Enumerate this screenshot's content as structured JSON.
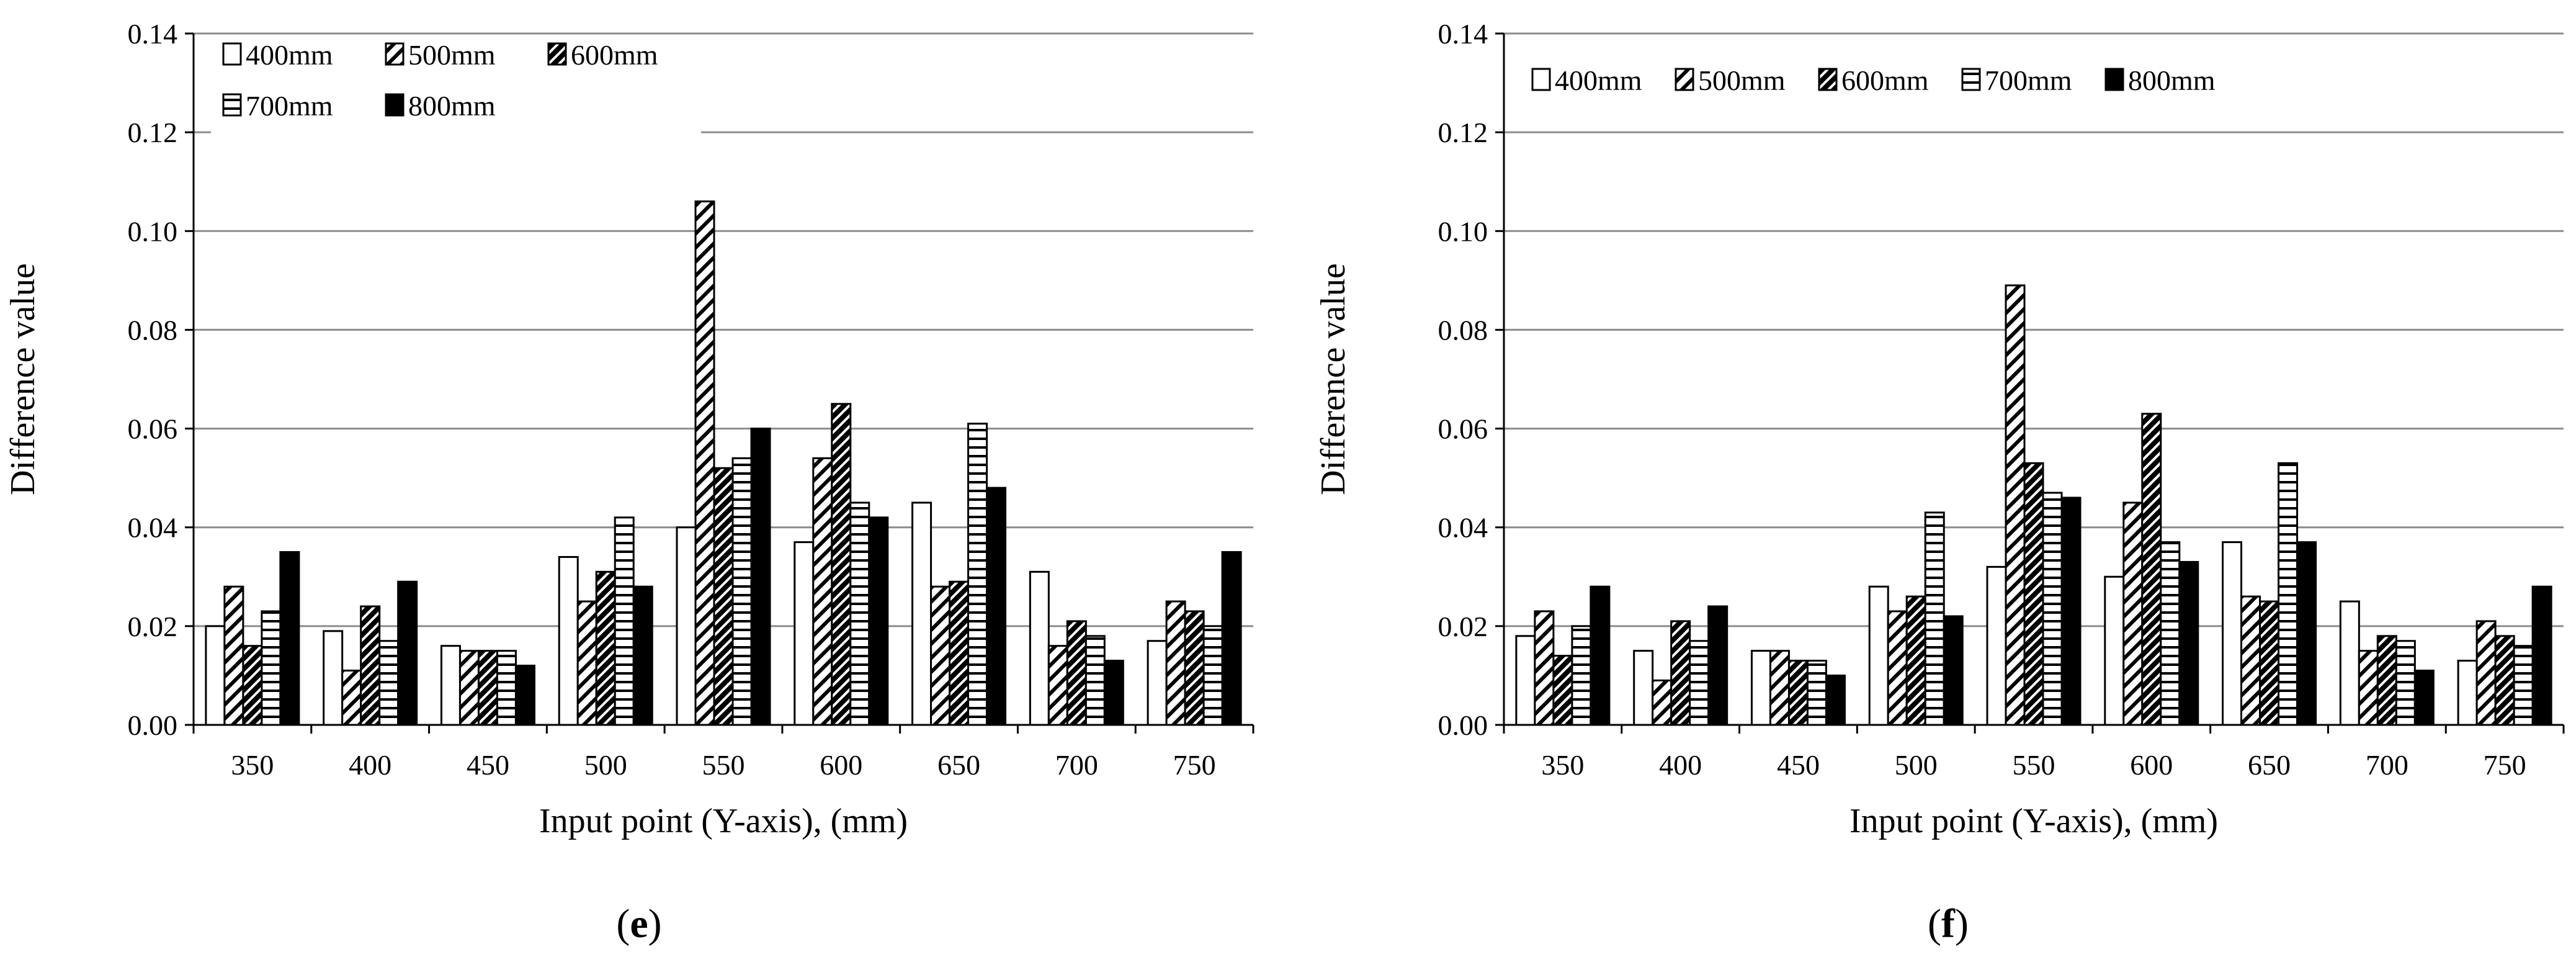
{
  "panels": [
    {
      "label_open": "(",
      "label_letter": "e",
      "label_close": ")"
    },
    {
      "label_open": "(",
      "label_letter": "f",
      "label_close": ")"
    }
  ],
  "chart_data": [
    {
      "type": "bar",
      "panel": "e",
      "title": "",
      "xlabel": "Input point (Y-axis), (mm)",
      "ylabel": "Difference value",
      "ylim": [
        0,
        0.14
      ],
      "yticks": [
        "0.00",
        "0.02",
        "0.04",
        "0.06",
        "0.08",
        "0.10",
        "0.12",
        "0.14"
      ],
      "grid": true,
      "legend_position": "top-left",
      "categories": [
        "350",
        "400",
        "450",
        "500",
        "550",
        "600",
        "650",
        "700",
        "750"
      ],
      "series": [
        {
          "name": "400mm",
          "values": [
            0.02,
            0.019,
            0.016,
            0.034,
            0.04,
            0.037,
            0.045,
            0.031,
            0.017
          ]
        },
        {
          "name": "500mm",
          "values": [
            0.028,
            0.011,
            0.015,
            0.025,
            0.106,
            0.054,
            0.028,
            0.016,
            0.025
          ]
        },
        {
          "name": "600mm",
          "values": [
            0.016,
            0.024,
            0.015,
            0.031,
            0.052,
            0.065,
            0.029,
            0.021,
            0.023
          ]
        },
        {
          "name": "700mm",
          "values": [
            0.023,
            0.017,
            0.015,
            0.042,
            0.054,
            0.045,
            0.061,
            0.018,
            0.02
          ]
        },
        {
          "name": "800mm",
          "values": [
            0.035,
            0.029,
            0.012,
            0.028,
            0.06,
            0.042,
            0.048,
            0.013,
            0.035
          ]
        }
      ]
    },
    {
      "type": "bar",
      "panel": "f",
      "title": "",
      "xlabel": "Input point (Y-axis), (mm)",
      "ylabel": "Difference value",
      "ylim": [
        0,
        0.14
      ],
      "yticks": [
        "0.00",
        "0.02",
        "0.04",
        "0.06",
        "0.08",
        "0.10",
        "0.12",
        "0.14"
      ],
      "grid": true,
      "legend_position": "top-left",
      "categories": [
        "350",
        "400",
        "450",
        "500",
        "550",
        "600",
        "650",
        "700",
        "750"
      ],
      "series": [
        {
          "name": "400mm",
          "values": [
            0.018,
            0.015,
            0.015,
            0.028,
            0.032,
            0.03,
            0.037,
            0.025,
            0.013
          ]
        },
        {
          "name": "500mm",
          "values": [
            0.023,
            0.009,
            0.015,
            0.023,
            0.089,
            0.045,
            0.026,
            0.015,
            0.021
          ]
        },
        {
          "name": "600mm",
          "values": [
            0.014,
            0.021,
            0.013,
            0.026,
            0.053,
            0.063,
            0.025,
            0.018,
            0.018
          ]
        },
        {
          "name": "700mm",
          "values": [
            0.02,
            0.017,
            0.013,
            0.043,
            0.047,
            0.037,
            0.053,
            0.017,
            0.016
          ]
        },
        {
          "name": "800mm",
          "values": [
            0.028,
            0.024,
            0.01,
            0.022,
            0.046,
            0.033,
            0.037,
            0.011,
            0.028
          ]
        }
      ]
    }
  ]
}
